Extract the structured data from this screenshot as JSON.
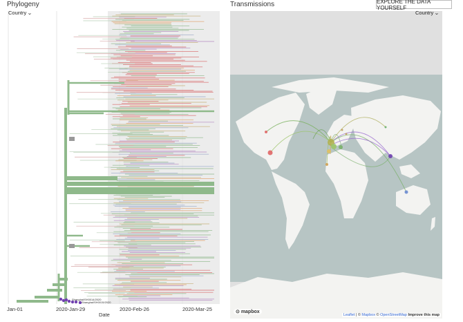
{
  "tree": {
    "title": "Phylogeny",
    "color_by": "Country",
    "axis_ticks": [
      "Jan-01",
      "2020-Jan-29",
      "2020-Feb-26",
      "2020-Mar-25"
    ],
    "axis_title": "Date",
    "tip_labels": [
      "Shanghai/SH0014/2020",
      "Shanghai/SH0015/2020"
    ]
  },
  "map": {
    "title": "Transmissions",
    "color_by": "Country",
    "explore_label": "EXPLORE THE DATA YOURSELF",
    "logo_text": "mapbox",
    "attribution": {
      "leaflet": "Leaflet",
      "sep1": " | © ",
      "mapbox": "Mapbox",
      "sep2": " © ",
      "osm": "OpenStreetMap",
      "improve": "Improve this map"
    }
  },
  "colors": {
    "green": "#8fb98b",
    "red": "#d9686a",
    "purple": "#7040b0",
    "ocean": "#b7c5c4",
    "land": "#f3f3f1",
    "polar": "#e0e0e0",
    "tree_shade": "#ececec"
  }
}
